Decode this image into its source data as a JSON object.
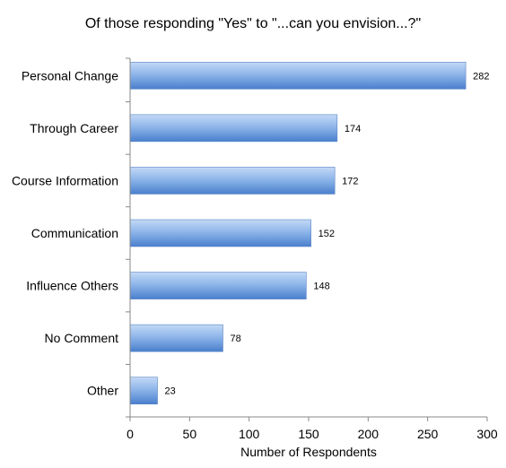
{
  "chart_data": {
    "type": "bar",
    "orientation": "horizontal",
    "title": "Of those responding \"Yes\" to \"...can you envision...?\"",
    "xlabel": "Number of Respondents",
    "ylabel": "",
    "categories": [
      "Personal Change",
      "Through Career",
      "Course Information",
      "Communication",
      "Influence Others",
      "No Comment",
      "Other"
    ],
    "values": [
      282,
      174,
      172,
      152,
      148,
      78,
      23
    ],
    "xlim": [
      0,
      300
    ],
    "xticks": [
      0,
      50,
      100,
      150,
      200,
      250,
      300
    ],
    "grid": false,
    "legend": "none",
    "bar_color": "#5b8fd6",
    "bar_highlight": "#a9c8f2"
  }
}
